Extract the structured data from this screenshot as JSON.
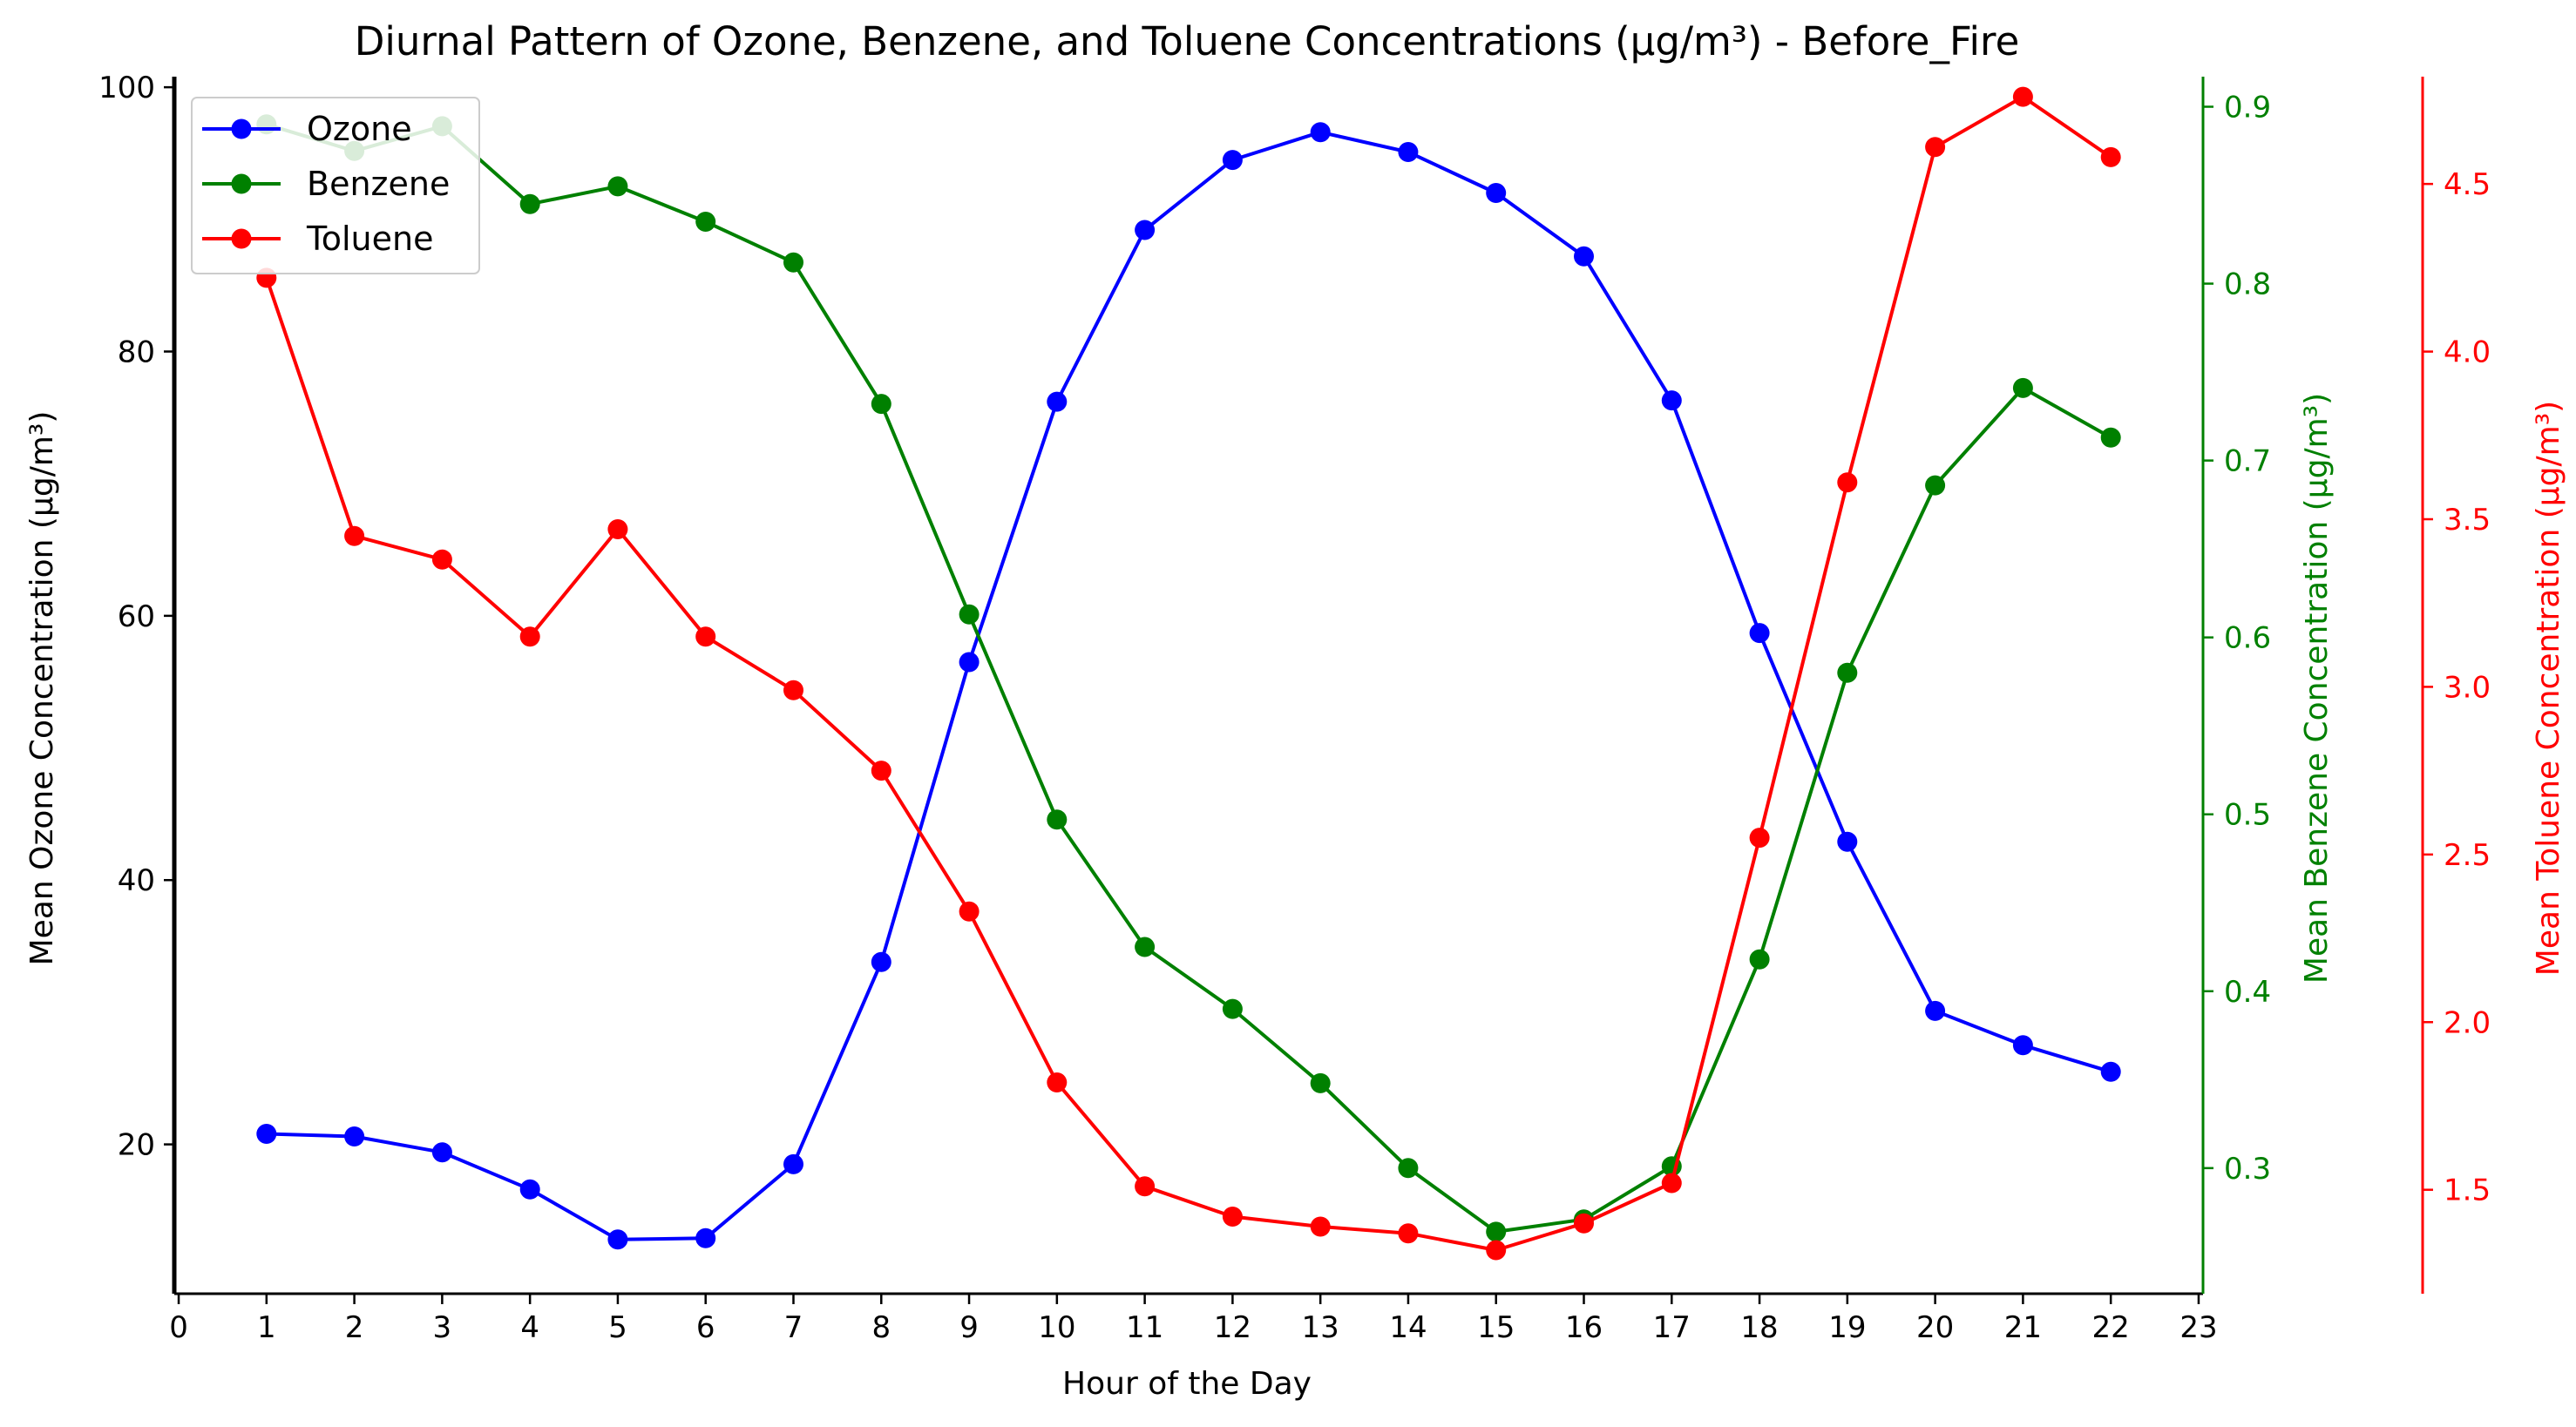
{
  "chart_data": {
    "type": "line",
    "title": "Diurnal Pattern of Ozone, Benzene, and Toluene Concentrations (µg/m³) - Before_Fire",
    "xlabel": "Hour of the Day",
    "x": [
      1,
      2,
      3,
      4,
      5,
      6,
      7,
      8,
      9,
      10,
      11,
      12,
      13,
      14,
      15,
      16,
      17,
      18,
      19,
      20,
      21,
      22
    ],
    "xlim": [
      -0.05,
      23.05
    ],
    "xticks": [
      "0",
      "1",
      "2",
      "3",
      "4",
      "5",
      "6",
      "7",
      "8",
      "9",
      "10",
      "11",
      "12",
      "13",
      "14",
      "15",
      "16",
      "17",
      "18",
      "19",
      "20",
      "21",
      "22",
      "23"
    ],
    "grid": false,
    "legend_position": "upper left",
    "axes": [
      {
        "id": "ozone",
        "side": "left",
        "label": "Mean Ozone Concentration (µg/m³)",
        "color": "#000000",
        "ylim": [
          8.7,
          100.8
        ],
        "ticks": [
          "20",
          "40",
          "60",
          "80",
          "100"
        ]
      },
      {
        "id": "benzene",
        "side": "right",
        "label": "Mean Benzene Concentration (µg/m³)",
        "color": "#008000",
        "ylim": [
          0.229,
          0.917
        ],
        "ticks": [
          "0.3",
          "0.4",
          "0.5",
          "0.6",
          "0.7",
          "0.8",
          "0.9"
        ]
      },
      {
        "id": "toluene",
        "side": "right-offset",
        "label": "Mean Toluene Concentration (µg/m³)",
        "color": "#ff0000",
        "ylim": [
          1.19,
          4.82
        ],
        "ticks": [
          "1.5",
          "2.0",
          "2.5",
          "3.0",
          "3.5",
          "4.0",
          "4.5"
        ]
      }
    ],
    "series": [
      {
        "name": "Ozone",
        "axis": "ozone",
        "color": "#0000ff",
        "values": [
          20.8,
          20.6,
          19.4,
          16.6,
          12.8,
          12.9,
          18.5,
          33.8,
          56.5,
          76.2,
          89.2,
          94.5,
          96.6,
          95.1,
          92.0,
          87.2,
          76.3,
          58.7,
          42.9,
          30.1,
          27.5,
          25.5
        ]
      },
      {
        "name": "Benzene",
        "axis": "benzene",
        "color": "#008000",
        "values": [
          0.89,
          0.875,
          0.889,
          0.845,
          0.855,
          0.835,
          0.812,
          0.732,
          0.613,
          0.497,
          0.425,
          0.39,
          0.348,
          0.3,
          0.264,
          0.271,
          0.301,
          0.418,
          0.58,
          0.686,
          0.741,
          0.713
        ]
      },
      {
        "name": "Toluene",
        "axis": "toluene",
        "color": "#ff0000",
        "values": [
          4.22,
          3.45,
          3.38,
          3.15,
          3.47,
          3.15,
          2.99,
          2.75,
          2.33,
          1.82,
          1.51,
          1.42,
          1.39,
          1.37,
          1.32,
          1.4,
          1.52,
          2.55,
          3.61,
          4.61,
          4.76,
          4.58
        ]
      }
    ]
  }
}
